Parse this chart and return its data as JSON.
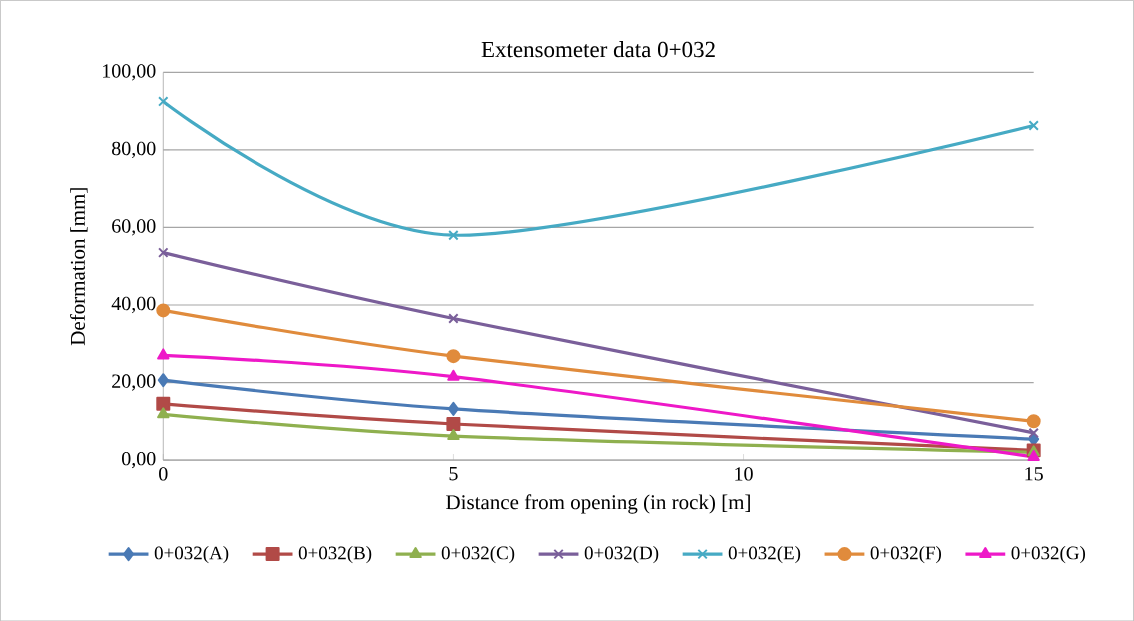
{
  "chart_data": {
    "type": "line",
    "title": "Extensometer data  0+032",
    "xlabel": "Distance from opening (in rock) [m]",
    "ylabel": "Deformation [mm]",
    "x": [
      0,
      5,
      15
    ],
    "xlim": [
      0,
      15
    ],
    "xticks": [
      0,
      5,
      10,
      15
    ],
    "ylim": [
      0,
      100
    ],
    "yticks": [
      {
        "value": 0,
        "label": "0,00"
      },
      {
        "value": 20,
        "label": "20,00"
      },
      {
        "value": 40,
        "label": "40,00"
      },
      {
        "value": 60,
        "label": "60,00"
      },
      {
        "value": 80,
        "label": "80,00"
      },
      {
        "value": 100,
        "label": "100,00"
      }
    ],
    "grid": "y",
    "legend": "bottom",
    "line_style": "solid",
    "series": [
      {
        "name": "0+032(A)",
        "color": "#4a7ab5",
        "marker": "diamond",
        "values": [
          20.6,
          13.2,
          5.4
        ]
      },
      {
        "name": "0+032(B)",
        "color": "#b14a47",
        "marker": "square",
        "values": [
          14.5,
          9.3,
          2.5
        ]
      },
      {
        "name": "0+032(C)",
        "color": "#8fb04f",
        "marker": "triangle",
        "values": [
          11.8,
          6.2,
          2.0
        ]
      },
      {
        "name": "0+032(D)",
        "color": "#7a5f9a",
        "marker": "cross",
        "values": [
          53.5,
          36.5,
          7.0
        ]
      },
      {
        "name": "0+032(E)",
        "color": "#46aac4",
        "marker": "cross",
        "values": [
          92.5,
          58.0,
          86.3
        ]
      },
      {
        "name": "0+032(F)",
        "color": "#e08b3c",
        "marker": "circle",
        "values": [
          38.6,
          26.8,
          10.0
        ]
      },
      {
        "name": "0+032(G)",
        "color": "#ee18c8",
        "marker": "triangle",
        "values": [
          27.0,
          21.5,
          0.8
        ]
      }
    ]
  }
}
